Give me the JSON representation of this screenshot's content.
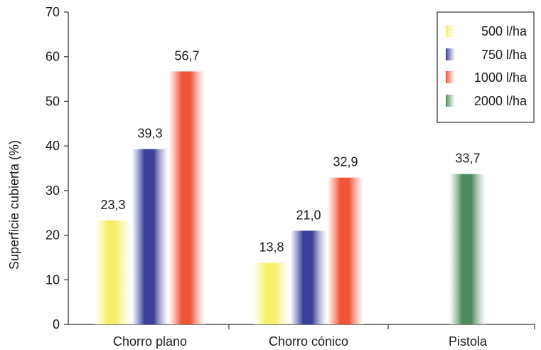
{
  "chart_data": {
    "type": "bar",
    "title": "",
    "xlabel": "",
    "ylabel": "Superficie cubierta (%)",
    "ylim": [
      0,
      70
    ],
    "yticks": [
      "0",
      "10",
      "20",
      "30",
      "40",
      "50",
      "60",
      "70"
    ],
    "categories": [
      "Chorro plano",
      "Chorro cónico",
      "Pistola"
    ],
    "series": [
      {
        "name": "500 l/ha",
        "color": "#f3f06a",
        "values": [
          23.3,
          13.8,
          null
        ],
        "labels": [
          "23,3",
          "13,8",
          null
        ]
      },
      {
        "name": "750 l/ha",
        "color": "#3a3f9a",
        "values": [
          39.3,
          21.0,
          null
        ],
        "labels": [
          "39,3",
          "21,0",
          null
        ]
      },
      {
        "name": "1000 l/ha",
        "color": "#f0553a",
        "values": [
          56.7,
          32.9,
          null
        ],
        "labels": [
          "56,7",
          "32,9",
          null
        ]
      },
      {
        "name": "2000 l/ha",
        "color": "#4f8a5e",
        "values": [
          null,
          null,
          33.7
        ],
        "labels": [
          null,
          null,
          "33,7"
        ]
      }
    ],
    "grid": false,
    "legend_position": "top-right"
  }
}
